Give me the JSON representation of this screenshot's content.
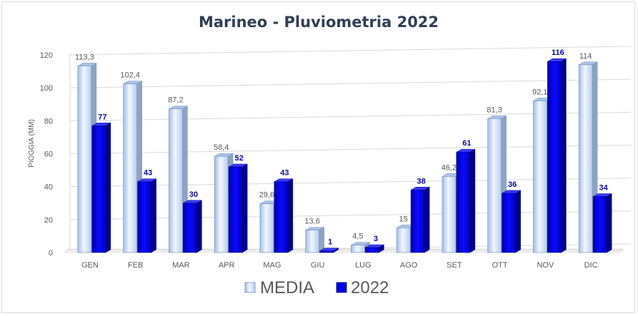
{
  "chart_data": {
    "type": "bar",
    "title": "Marineo - Pluviometria 2022",
    "ylabel": "PIOGGIA (MM)",
    "xlabel": "",
    "ylim": [
      0,
      120
    ],
    "yticks": [
      "0",
      "20",
      "40",
      "60",
      "80",
      "100",
      "120"
    ],
    "grid": true,
    "legend_position": "bottom",
    "categories": [
      "GEN",
      "FEB",
      "MAR",
      "APR",
      "MAG",
      "GIU",
      "LUG",
      "AGO",
      "SET",
      "OTT",
      "NOV",
      "DIC"
    ],
    "series": [
      {
        "name": "MEDIA",
        "values": [
          113.3,
          102.4,
          87.2,
          58.4,
          29.6,
          13.6,
          4.5,
          15,
          46.2,
          81.3,
          92.1,
          114
        ],
        "labels": [
          "113,3",
          "102,4",
          "87,2",
          "58,4",
          "29,6",
          "13,6",
          "4,5",
          "15",
          "46,2",
          "81,3",
          "92,1",
          "114"
        ],
        "color": "#c7d9f4"
      },
      {
        "name": "2022",
        "values": [
          77,
          43,
          30,
          52,
          43,
          1,
          3,
          38,
          61,
          36,
          116,
          34
        ],
        "labels": [
          "77",
          "43",
          "30",
          "52",
          "43",
          "1",
          "3",
          "38",
          "61",
          "36",
          "116",
          "34"
        ],
        "color": "#0000cc"
      }
    ]
  }
}
